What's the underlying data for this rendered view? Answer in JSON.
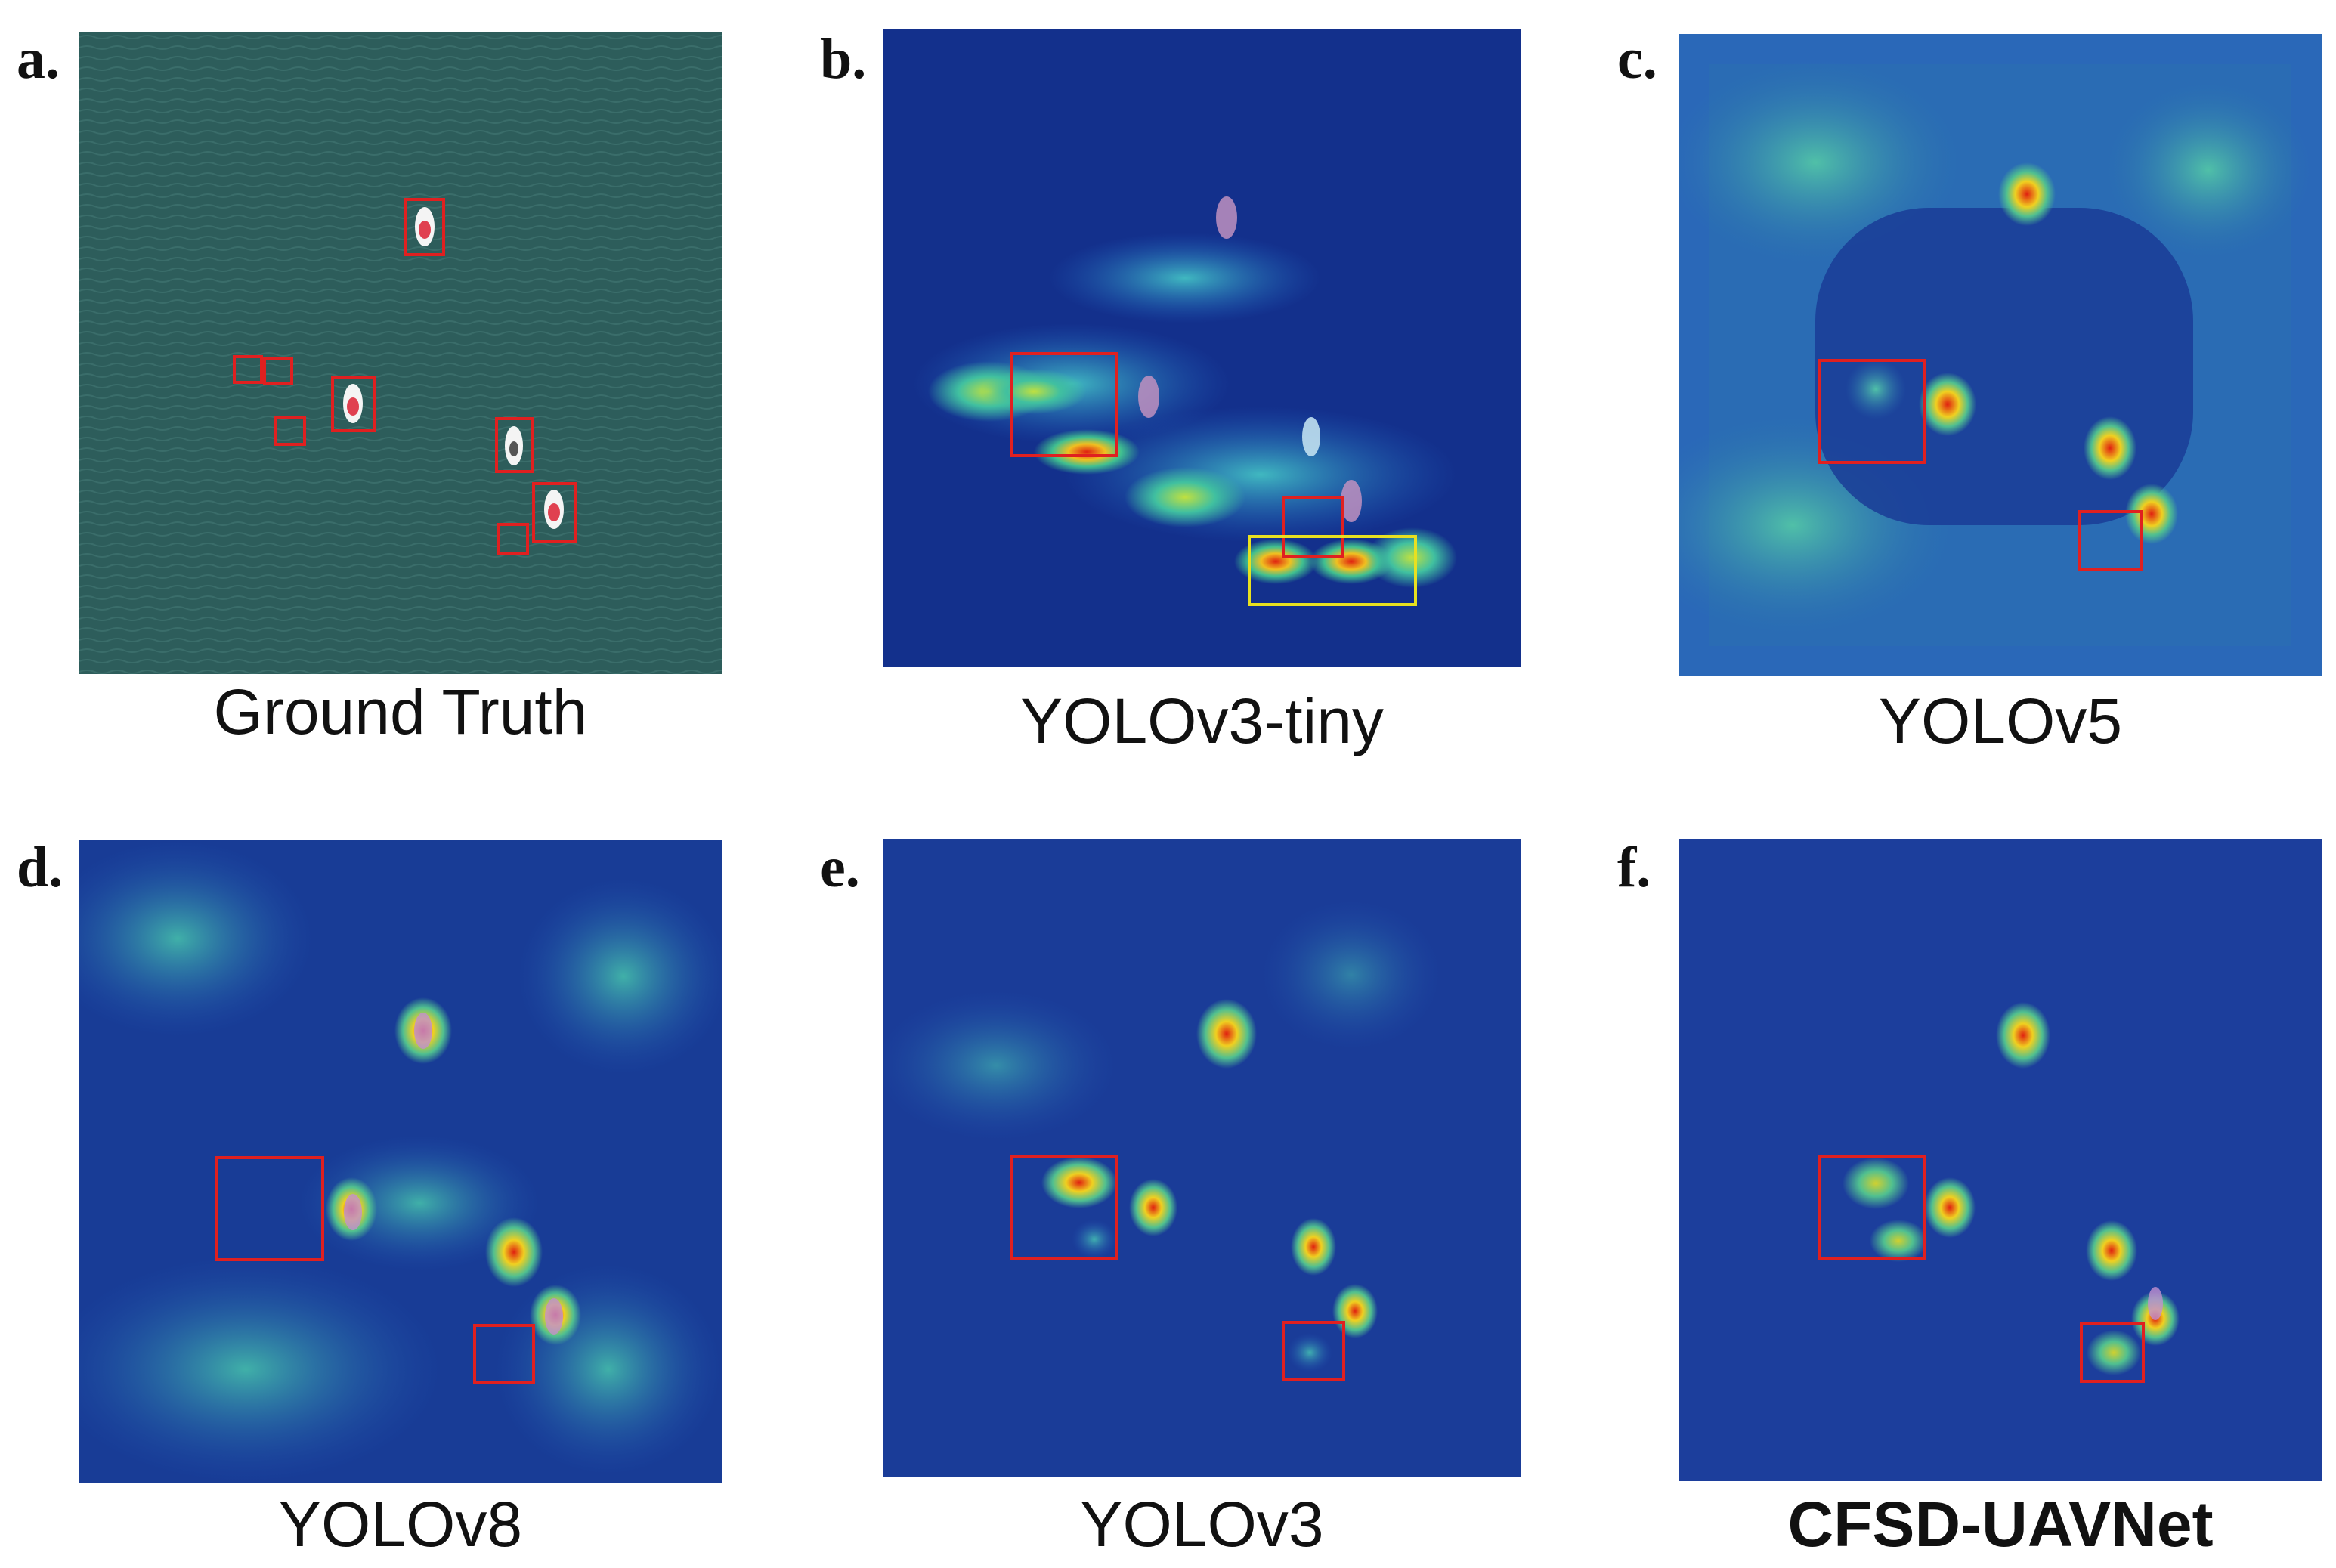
{
  "panels": [
    {
      "letter": "a.",
      "caption": "Ground Truth",
      "caption_bold": false,
      "kind": "ground-truth"
    },
    {
      "letter": "b.",
      "caption": "YOLOv3-tiny",
      "caption_bold": false,
      "kind": "heatmap-yolov3-tiny"
    },
    {
      "letter": "c.",
      "caption": "YOLOv5",
      "caption_bold": false,
      "kind": "heatmap-yolov5"
    },
    {
      "letter": "d.",
      "caption": "YOLOv8",
      "caption_bold": false,
      "kind": "heatmap-yolov8"
    },
    {
      "letter": "e.",
      "caption": "YOLOv3",
      "caption_bold": false,
      "kind": "heatmap-yolov3"
    },
    {
      "letter": "f.",
      "caption": "CFSD-UAVNet",
      "caption_bold": true,
      "kind": "heatmap-cfsd-uavnet"
    }
  ],
  "colors": {
    "sea": "#2e5e5c",
    "heatmap_base": "#13308c",
    "box_red": "#e02020",
    "box_yellow": "#e8e020"
  }
}
